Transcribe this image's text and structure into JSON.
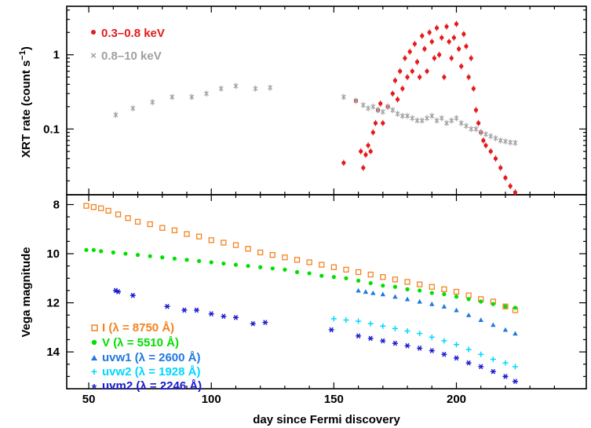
{
  "chart_data": [
    {
      "type": "scatter",
      "panel": "top",
      "ylabel_main": "XRT rate (count s",
      "ylabel_sup": "−1",
      "ylabel_close": ")",
      "yscale": "log",
      "ylim": [
        0.013,
        4.5
      ],
      "yticks": [
        0.1,
        1
      ],
      "ytick_labels": [
        "0.1",
        "1"
      ],
      "series": [
        {
          "name": "0.3–0.8 keV",
          "color": "#e41a1c",
          "marker": "dot",
          "points": [
            [
              154,
              0.035
            ],
            [
              159,
              0.24
            ],
            [
              161,
              0.05
            ],
            [
              162,
              0.03
            ],
            [
              163,
              0.045
            ],
            [
              164,
              0.06
            ],
            [
              165,
              0.05
            ],
            [
              166,
              0.09
            ],
            [
              167,
              0.12
            ],
            [
              168,
              0.18
            ],
            [
              169,
              0.22
            ],
            [
              170,
              0.12
            ],
            [
              172,
              0.2
            ],
            [
              174,
              0.3
            ],
            [
              175,
              0.45
            ],
            [
              176,
              0.25
            ],
            [
              177,
              0.6
            ],
            [
              178,
              0.35
            ],
            [
              179,
              0.9
            ],
            [
              180,
              0.5
            ],
            [
              181,
              1.1
            ],
            [
              182,
              0.6
            ],
            [
              183,
              1.4
            ],
            [
              184,
              0.8
            ],
            [
              185,
              0.5
            ],
            [
              186,
              1.8
            ],
            [
              187,
              1.2
            ],
            [
              188,
              0.6
            ],
            [
              189,
              2.0
            ],
            [
              190,
              1.5
            ],
            [
              191,
              0.9
            ],
            [
              192,
              2.3
            ],
            [
              193,
              1.0
            ],
            [
              194,
              1.7
            ],
            [
              195,
              0.5
            ],
            [
              196,
              2.4
            ],
            [
              197,
              1.5
            ],
            [
              198,
              0.9
            ],
            [
              199,
              1.7
            ],
            [
              200,
              2.6
            ],
            [
              201,
              1.2
            ],
            [
              202,
              0.7
            ],
            [
              203,
              1.9
            ],
            [
              204,
              1.3
            ],
            [
              205,
              0.5
            ],
            [
              206,
              0.9
            ],
            [
              207,
              0.35
            ],
            [
              208,
              0.18
            ],
            [
              209,
              0.12
            ],
            [
              210,
              0.09
            ],
            [
              211,
              0.07
            ],
            [
              212,
              0.06
            ],
            [
              214,
              0.05
            ],
            [
              216,
              0.04
            ],
            [
              218,
              0.03
            ],
            [
              220,
              0.022
            ],
            [
              222,
              0.017
            ],
            [
              224,
              0.014
            ]
          ]
        },
        {
          "name": "0.8–10 keV",
          "color": "#a0a0a0",
          "marker": "x",
          "points": [
            [
              61,
              0.155
            ],
            [
              68,
              0.19
            ],
            [
              76,
              0.23
            ],
            [
              84,
              0.27
            ],
            [
              92,
              0.27
            ],
            [
              98,
              0.3
            ],
            [
              104,
              0.35
            ],
            [
              110,
              0.38
            ],
            [
              118,
              0.35
            ],
            [
              124,
              0.36
            ],
            [
              154,
              0.27
            ],
            [
              159,
              0.24
            ],
            [
              162,
              0.21
            ],
            [
              164,
              0.19
            ],
            [
              166,
              0.2
            ],
            [
              168,
              0.18
            ],
            [
              170,
              0.17
            ],
            [
              172,
              0.2
            ],
            [
              174,
              0.18
            ],
            [
              176,
              0.16
            ],
            [
              178,
              0.15
            ],
            [
              180,
              0.15
            ],
            [
              182,
              0.14
            ],
            [
              184,
              0.13
            ],
            [
              186,
              0.13
            ],
            [
              188,
              0.14
            ],
            [
              190,
              0.15
            ],
            [
              192,
              0.13
            ],
            [
              194,
              0.14
            ],
            [
              196,
              0.12
            ],
            [
              198,
              0.13
            ],
            [
              200,
              0.14
            ],
            [
              202,
              0.12
            ],
            [
              204,
              0.11
            ],
            [
              206,
              0.1
            ],
            [
              208,
              0.1
            ],
            [
              210,
              0.09
            ],
            [
              212,
              0.085
            ],
            [
              214,
              0.08
            ],
            [
              216,
              0.075
            ],
            [
              218,
              0.07
            ],
            [
              220,
              0.068
            ],
            [
              222,
              0.066
            ],
            [
              224,
              0.065
            ]
          ]
        }
      ]
    },
    {
      "type": "scatter",
      "panel": "bottom",
      "ylabel": "Vega magnitude",
      "xlabel": "day since Fermi discovery",
      "xlim": [
        41,
        253
      ],
      "ylim": [
        15.5,
        7.6
      ],
      "yticks": [
        8,
        10,
        12,
        14
      ],
      "ytick_labels": [
        "8",
        "10",
        "12",
        "14"
      ],
      "xticks": [
        50,
        100,
        150,
        200
      ],
      "xtick_labels": [
        "50",
        "100",
        "150",
        "200"
      ],
      "series": [
        {
          "name": "I",
          "lambda_label": "(λ = 8750 Å)",
          "color": "#f5821f",
          "marker": "square",
          "points": [
            [
              49,
              8.05
            ],
            [
              52,
              8.1
            ],
            [
              55,
              8.15
            ],
            [
              58,
              8.25
            ],
            [
              62,
              8.4
            ],
            [
              66,
              8.55
            ],
            [
              70,
              8.7
            ],
            [
              75,
              8.8
            ],
            [
              80,
              8.95
            ],
            [
              85,
              9.05
            ],
            [
              90,
              9.2
            ],
            [
              95,
              9.3
            ],
            [
              100,
              9.45
            ],
            [
              105,
              9.55
            ],
            [
              110,
              9.65
            ],
            [
              115,
              9.8
            ],
            [
              120,
              9.95
            ],
            [
              125,
              10.05
            ],
            [
              130,
              10.15
            ],
            [
              135,
              10.25
            ],
            [
              140,
              10.35
            ],
            [
              145,
              10.45
            ],
            [
              150,
              10.55
            ],
            [
              155,
              10.65
            ],
            [
              160,
              10.75
            ],
            [
              165,
              10.85
            ],
            [
              170,
              10.95
            ],
            [
              175,
              11.05
            ],
            [
              180,
              11.15
            ],
            [
              185,
              11.25
            ],
            [
              190,
              11.35
            ],
            [
              195,
              11.45
            ],
            [
              200,
              11.55
            ],
            [
              205,
              11.7
            ],
            [
              210,
              11.85
            ],
            [
              215,
              11.95
            ],
            [
              220,
              12.15
            ],
            [
              224,
              12.3
            ]
          ]
        },
        {
          "name": "V",
          "lambda_label": "(λ = 5510 Å)",
          "color": "#00e000",
          "marker": "dot",
          "points": [
            [
              49,
              9.85
            ],
            [
              52,
              9.85
            ],
            [
              55,
              9.9
            ],
            [
              60,
              9.95
            ],
            [
              65,
              10.0
            ],
            [
              70,
              10.05
            ],
            [
              75,
              10.1
            ],
            [
              80,
              10.15
            ],
            [
              85,
              10.2
            ],
            [
              90,
              10.25
            ],
            [
              95,
              10.3
            ],
            [
              100,
              10.35
            ],
            [
              105,
              10.4
            ],
            [
              110,
              10.45
            ],
            [
              115,
              10.5
            ],
            [
              120,
              10.55
            ],
            [
              125,
              10.6
            ],
            [
              130,
              10.65
            ],
            [
              135,
              10.75
            ],
            [
              140,
              10.8
            ],
            [
              145,
              10.9
            ],
            [
              150,
              10.95
            ],
            [
              155,
              11.0
            ],
            [
              160,
              11.1
            ],
            [
              165,
              11.2
            ],
            [
              170,
              11.3
            ],
            [
              175,
              11.35
            ],
            [
              180,
              11.45
            ],
            [
              185,
              11.5
            ],
            [
              190,
              11.6
            ],
            [
              195,
              11.65
            ],
            [
              200,
              11.75
            ],
            [
              205,
              11.85
            ],
            [
              210,
              11.95
            ],
            [
              215,
              12.05
            ],
            [
              220,
              12.15
            ],
            [
              224,
              12.2
            ]
          ]
        },
        {
          "name": "uvw1",
          "lambda_label": "(λ = 2600 Å)",
          "color": "#1f78e0",
          "marker": "triangle",
          "points": [
            [
              160,
              11.5
            ],
            [
              163,
              11.55
            ],
            [
              166,
              11.6
            ],
            [
              170,
              11.65
            ],
            [
              175,
              11.75
            ],
            [
              180,
              11.85
            ],
            [
              185,
              11.95
            ],
            [
              190,
              12.05
            ],
            [
              195,
              12.15
            ],
            [
              200,
              12.3
            ],
            [
              205,
              12.5
            ],
            [
              210,
              12.7
            ],
            [
              215,
              12.9
            ],
            [
              220,
              13.1
            ],
            [
              224,
              13.25
            ]
          ]
        },
        {
          "name": "uvw2",
          "lambda_label": "(λ = 1928 Å)",
          "color": "#00d8ff",
          "marker": "plus",
          "points": [
            [
              150,
              12.65
            ],
            [
              155,
              12.7
            ],
            [
              160,
              12.75
            ],
            [
              165,
              12.85
            ],
            [
              170,
              12.95
            ],
            [
              175,
              13.05
            ],
            [
              180,
              13.15
            ],
            [
              185,
              13.25
            ],
            [
              190,
              13.4
            ],
            [
              195,
              13.55
            ],
            [
              200,
              13.7
            ],
            [
              205,
              13.9
            ],
            [
              210,
              14.1
            ],
            [
              215,
              14.3
            ],
            [
              220,
              14.45
            ],
            [
              224,
              14.6
            ]
          ]
        },
        {
          "name": "uvm2",
          "lambda_label": "(λ = 2246 Å)",
          "color": "#1a1acd",
          "marker": "asterisk",
          "points": [
            [
              61,
              11.5
            ],
            [
              62,
              11.55
            ],
            [
              68,
              11.7
            ],
            [
              82,
              12.15
            ],
            [
              89,
              12.3
            ],
            [
              94,
              12.3
            ],
            [
              100,
              12.45
            ],
            [
              105,
              12.55
            ],
            [
              110,
              12.6
            ],
            [
              117,
              12.85
            ],
            [
              122,
              12.8
            ],
            [
              149,
              13.1
            ],
            [
              160,
              13.35
            ],
            [
              165,
              13.45
            ],
            [
              170,
              13.55
            ],
            [
              175,
              13.65
            ],
            [
              180,
              13.75
            ],
            [
              185,
              13.85
            ],
            [
              190,
              13.95
            ],
            [
              195,
              14.1
            ],
            [
              200,
              14.25
            ],
            [
              205,
              14.45
            ],
            [
              210,
              14.6
            ],
            [
              215,
              14.8
            ],
            [
              220,
              15.0
            ],
            [
              224,
              15.2
            ]
          ]
        }
      ]
    }
  ]
}
